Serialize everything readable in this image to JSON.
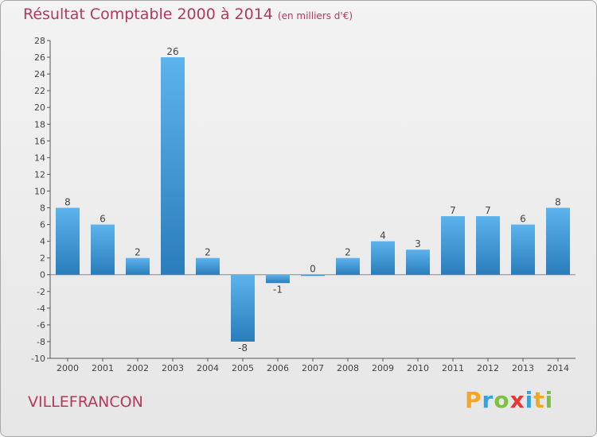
{
  "title": "Résultat Comptable 2000 à 2014",
  "unit": "(en milliers d'€)",
  "commune": "VILLEFRANCON",
  "brand": {
    "letters": [
      "P",
      "r",
      "o",
      "x",
      "i",
      "t",
      "i"
    ],
    "colors": [
      "#f5a623",
      "#3aa0d8",
      "#7cc242",
      "#e53935",
      "#3aa0d8",
      "#f5a623",
      "#7cc242"
    ]
  },
  "colors": {
    "title": "#b23a5a",
    "bar_light": "#5db3ec",
    "bar_dark": "#2a7dbb"
  },
  "chart_data": {
    "type": "bar",
    "categories": [
      "2000",
      "2001",
      "2002",
      "2003",
      "2004",
      "2005",
      "2006",
      "2007",
      "2008",
      "2009",
      "2010",
      "2011",
      "2012",
      "2013",
      "2014"
    ],
    "values": [
      8,
      6,
      2,
      26,
      2,
      -8,
      -1,
      0,
      2,
      4,
      3,
      7,
      7,
      6,
      8
    ],
    "ylim": [
      -10,
      28
    ],
    "yticks": [
      -10,
      -8,
      -6,
      -4,
      -2,
      0,
      2,
      4,
      6,
      8,
      10,
      12,
      14,
      16,
      18,
      20,
      22,
      24,
      26,
      28
    ],
    "grid": false,
    "title": "Résultat Comptable 2000 à 2014",
    "xlabel": "",
    "ylabel": ""
  }
}
